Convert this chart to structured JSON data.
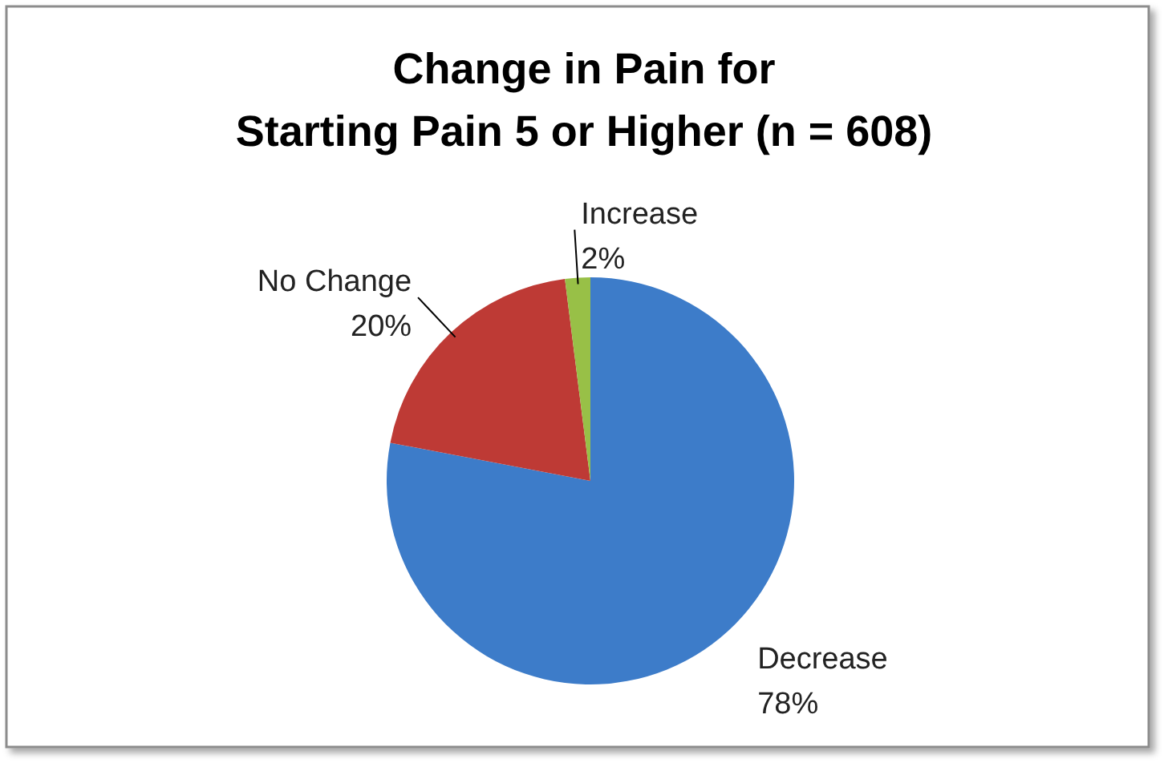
{
  "chart_data": {
    "type": "pie",
    "title": "Change in Pain for\nStarting Pain 5 or Higher (n = 608)",
    "categories": [
      "Decrease",
      "No Change",
      "Increase"
    ],
    "values": [
      78,
      20,
      2
    ],
    "colors": [
      "#3d7cc9",
      "#be3a35",
      "#98c047"
    ],
    "value_labels": [
      "78%",
      "20%",
      "2%"
    ]
  }
}
